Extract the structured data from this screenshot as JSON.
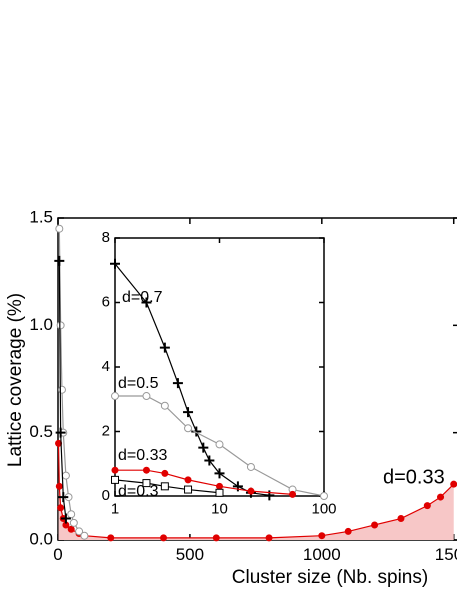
{
  "chart_data": [
    {
      "type": "scatter",
      "xlabel": "Cluster size (Nb. spins)",
      "ylabel": "Lattice coverage (%)",
      "xlim": [
        0,
        1520
      ],
      "ylim": [
        0,
        1.5
      ],
      "xticks": [
        0,
        500,
        1000,
        1500
      ],
      "yticks": [
        {
          "value": 0,
          "label": "0.0"
        },
        0.5,
        {
          "value": 1,
          "label": "1.0"
        },
        1.5
      ],
      "annotation": "d=0.33",
      "series": [
        {
          "color": "#e00000",
          "marker": "filled-circle",
          "fill_area": true,
          "x": [
            2,
            5,
            10,
            20,
            30,
            50,
            80,
            100,
            200,
            400,
            600,
            800,
            1000,
            1100,
            1200,
            1300,
            1400,
            1450,
            1500
          ],
          "values": [
            0.45,
            0.25,
            0.15,
            0.1,
            0.07,
            0.05,
            0.03,
            0.02,
            0.01,
            0.01,
            0.01,
            0.01,
            0.02,
            0.04,
            0.07,
            0.1,
            0.16,
            0.2,
            0.26
          ]
        },
        {
          "color": "#999999",
          "marker": "open-circle",
          "x": [
            5,
            10,
            15,
            20,
            30,
            40,
            50,
            60,
            80,
            100
          ],
          "values": [
            1.45,
            1.0,
            0.7,
            0.5,
            0.3,
            0.2,
            0.12,
            0.08,
            0.04,
            0.02
          ]
        },
        {
          "color": "#000000",
          "marker": "cross",
          "x": [
            5,
            10,
            20,
            30
          ],
          "values": [
            1.3,
            0.5,
            0.2,
            0.1
          ]
        }
      ]
    },
    {
      "type": "line",
      "xscale": "log",
      "xlim": [
        1,
        100
      ],
      "ylim": [
        0,
        8
      ],
      "xticks": [
        1,
        10,
        100
      ],
      "yticks": [
        0,
        2,
        4,
        6,
        8
      ],
      "series": [
        {
          "name": "d=0.7",
          "color": "#000000",
          "marker": "cross",
          "x": [
            1,
            2,
            3,
            4,
            5,
            6,
            7,
            8,
            10,
            15,
            20,
            30
          ],
          "values": [
            7.2,
            6.0,
            4.6,
            3.5,
            2.6,
            2.0,
            1.5,
            1.1,
            0.7,
            0.3,
            0.1,
            0.02
          ]
        },
        {
          "name": "d=0.5",
          "color": "#999999",
          "marker": "open-circle",
          "x": [
            1,
            2,
            3,
            5,
            10,
            20,
            50,
            100
          ],
          "values": [
            3.1,
            3.1,
            2.8,
            2.1,
            1.6,
            0.9,
            0.2,
            0
          ]
        },
        {
          "name": "d=0.33",
          "color": "#e00000",
          "marker": "filled-circle",
          "x": [
            1,
            2,
            3,
            5,
            10,
            20,
            50
          ],
          "values": [
            0.8,
            0.8,
            0.7,
            0.5,
            0.3,
            0.15,
            0.05
          ]
        },
        {
          "name": "d=0.3",
          "color": "#000000",
          "marker": "open-square",
          "x": [
            1,
            2,
            3,
            5,
            10
          ],
          "values": [
            0.5,
            0.4,
            0.3,
            0.2,
            0.1
          ]
        }
      ]
    }
  ]
}
